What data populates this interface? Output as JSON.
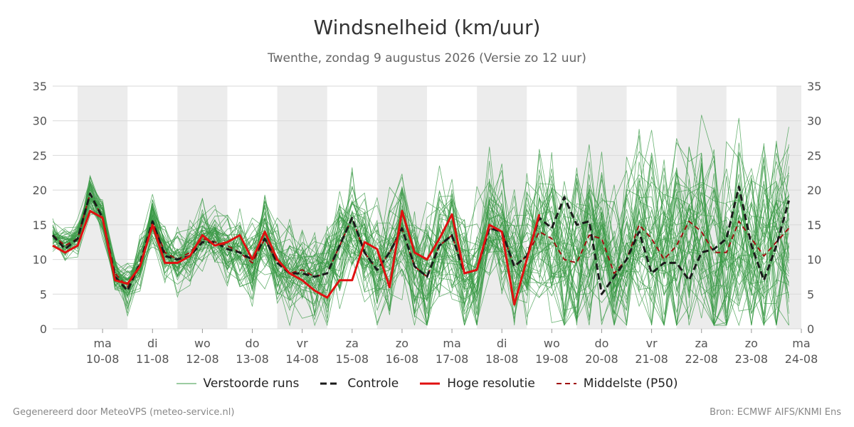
{
  "title": "Windsnelheid (km/uur)",
  "subtitle": "Twenthe, zondag  9 augustus 2026 (Versie zo 12 uur)",
  "footer": {
    "left": "Gegenereerd door MeteoVPS (meteo-service.nl)",
    "right": "Bron: ECMWF AIFS/KNMI Ens"
  },
  "legend": {
    "perturbed": "Verstoorde runs",
    "control": "Controle",
    "highres": "Hoge resolutie",
    "median": "Middelste (P50)"
  },
  "colors": {
    "perturbed": "#3a9a45",
    "control": "#1a1a1a",
    "highres": "#e01010",
    "median": "#a01010",
    "weekend_band": "#ececec",
    "grid": "#d9d9d9"
  },
  "chart_data": {
    "type": "line",
    "ylim": [
      0,
      35
    ],
    "yticks": [
      0,
      5,
      10,
      15,
      20,
      25,
      30,
      35
    ],
    "grid": true,
    "legend_position": "bottom",
    "x_start": "2026-08-09T12:00",
    "x_end": "2026-08-24T12:00",
    "x_step_hours": 6,
    "shaded_days": [
      "2026-08-10",
      "2026-08-12",
      "2026-08-14",
      "2026-08-16",
      "2026-08-18",
      "2026-08-20",
      "2026-08-22",
      "2026-08-24"
    ],
    "day_ticks": [
      {
        "day": "ma",
        "date": "10-08"
      },
      {
        "day": "di",
        "date": "11-08"
      },
      {
        "day": "wo",
        "date": "12-08"
      },
      {
        "day": "do",
        "date": "13-08"
      },
      {
        "day": "vr",
        "date": "14-08"
      },
      {
        "day": "za",
        "date": "15-08"
      },
      {
        "day": "zo",
        "date": "16-08"
      },
      {
        "day": "ma",
        "date": "17-08"
      },
      {
        "day": "di",
        "date": "18-08"
      },
      {
        "day": "wo",
        "date": "19-08"
      },
      {
        "day": "do",
        "date": "20-08"
      },
      {
        "day": "vr",
        "date": "21-08"
      },
      {
        "day": "za",
        "date": "22-08"
      },
      {
        "day": "zo",
        "date": "23-08"
      },
      {
        "day": "ma",
        "date": "24-08"
      }
    ],
    "series": [
      {
        "name": "Middelste (P50)",
        "style": "dashed",
        "values": [
          13.5,
          12,
          13,
          19.5,
          16,
          8,
          6,
          9,
          15.5,
          11,
          10,
          11,
          13,
          12.5,
          12,
          11,
          9.5,
          13,
          9.5,
          8,
          8.5,
          7.5,
          8,
          12,
          16,
          11,
          8.5,
          11,
          14.5,
          9,
          7.5,
          12,
          13.5,
          8,
          8.5,
          14.5,
          14,
          9,
          10.5,
          14,
          13,
          10,
          9.5,
          13.5,
          13,
          8,
          10,
          15,
          13,
          10,
          12,
          15.5,
          14,
          11,
          11,
          15.5,
          13,
          10.5,
          12.5,
          14.5
        ]
      },
      {
        "name": "Controle",
        "style": "dashed",
        "values": [
          13.5,
          11.5,
          13,
          19.5,
          16,
          7.5,
          5.5,
          9.5,
          15.5,
          10.5,
          10,
          10.5,
          12.5,
          12.5,
          11.5,
          11,
          10,
          13,
          9.5,
          8,
          8,
          7.5,
          8,
          12,
          16,
          11,
          8.5,
          11,
          14.5,
          9,
          7.5,
          12,
          13.5,
          8,
          8.5,
          14.5,
          14,
          9,
          10.5,
          16,
          14.5,
          19,
          15,
          15.5,
          5,
          7.5,
          10,
          14,
          8,
          9.5,
          9.5,
          7,
          11,
          11.5,
          13,
          20.5,
          12,
          7,
          12,
          18.5
        ]
      },
      {
        "name": "Hoge resolutie",
        "style": "solid",
        "values": [
          12,
          11,
          12,
          17,
          16,
          7,
          6.5,
          9,
          15,
          9.5,
          9.5,
          10.5,
          13.5,
          12,
          12.5,
          13.5,
          10,
          14,
          10,
          8,
          7,
          5.5,
          4.5,
          7,
          7,
          12.5,
          11.5,
          6,
          17,
          11,
          10,
          13,
          16.5,
          8,
          8.5,
          15,
          14,
          3.5,
          10,
          16.5
        ]
      }
    ]
  }
}
